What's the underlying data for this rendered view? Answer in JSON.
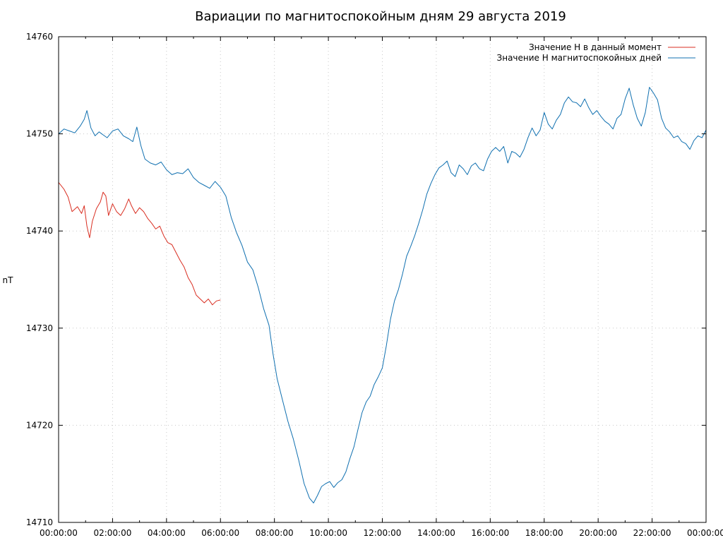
{
  "chart_data": {
    "type": "line",
    "title": "Вариации по магнитоспокойным дням 29 августа 2019",
    "ylabel": "nT",
    "xlabel": "",
    "xlim": [
      0,
      24
    ],
    "ylim": [
      14710,
      14760
    ],
    "grid": true,
    "legend_position": "top-right",
    "x_ticks": [
      {
        "value": 0,
        "label": "00:00:00"
      },
      {
        "value": 2,
        "label": "02:00:00"
      },
      {
        "value": 4,
        "label": "04:00:00"
      },
      {
        "value": 6,
        "label": "06:00:00"
      },
      {
        "value": 8,
        "label": "08:00:00"
      },
      {
        "value": 10,
        "label": "10:00:00"
      },
      {
        "value": 12,
        "label": "12:00:00"
      },
      {
        "value": 14,
        "label": "14:00:00"
      },
      {
        "value": 16,
        "label": "16:00:00"
      },
      {
        "value": 18,
        "label": "18:00:00"
      },
      {
        "value": 20,
        "label": "20:00:00"
      },
      {
        "value": 22,
        "label": "22:00:00"
      },
      {
        "value": 24,
        "label": "00:00:00"
      }
    ],
    "y_ticks": [
      {
        "value": 14710,
        "label": "14710"
      },
      {
        "value": 14720,
        "label": "14720"
      },
      {
        "value": 14730,
        "label": "14730"
      },
      {
        "value": 14740,
        "label": "14740"
      },
      {
        "value": 14750,
        "label": "14750"
      },
      {
        "value": 14760,
        "label": "14760"
      }
    ],
    "series": [
      {
        "name": "Значение H в данный момент",
        "color": "#d92d20",
        "x": [
          0.0,
          0.2,
          0.35,
          0.5,
          0.7,
          0.85,
          0.95,
          1.05,
          1.15,
          1.25,
          1.4,
          1.55,
          1.65,
          1.75,
          1.85,
          2.0,
          2.15,
          2.3,
          2.45,
          2.6,
          2.7,
          2.85,
          3.0,
          3.15,
          3.3,
          3.45,
          3.6,
          3.75,
          3.9,
          4.05,
          4.2,
          4.35,
          4.5,
          4.65,
          4.8,
          4.95,
          5.1,
          5.25,
          5.4,
          5.55,
          5.7,
          5.85,
          6.0
        ],
        "y": [
          14745.0,
          14744.3,
          14743.5,
          14742.0,
          14742.5,
          14741.8,
          14742.6,
          14740.5,
          14739.3,
          14741.0,
          14742.3,
          14743.0,
          14744.0,
          14743.6,
          14741.6,
          14742.8,
          14742.0,
          14741.6,
          14742.3,
          14743.3,
          14742.6,
          14741.8,
          14742.4,
          14742.0,
          14741.3,
          14740.8,
          14740.2,
          14740.5,
          14739.5,
          14738.8,
          14738.6,
          14737.8,
          14737.0,
          14736.3,
          14735.2,
          14734.5,
          14733.4,
          14733.0,
          14732.6,
          14733.0,
          14732.4,
          14732.8,
          14732.9
        ]
      },
      {
        "name": "Значение H магнитоспокойных дней",
        "color": "#1070b0",
        "x": [
          0.0,
          0.2,
          0.4,
          0.6,
          0.8,
          0.95,
          1.05,
          1.2,
          1.35,
          1.5,
          1.65,
          1.8,
          2.0,
          2.2,
          2.4,
          2.6,
          2.75,
          2.9,
          3.05,
          3.2,
          3.4,
          3.6,
          3.8,
          4.0,
          4.2,
          4.4,
          4.6,
          4.8,
          5.0,
          5.2,
          5.4,
          5.6,
          5.8,
          6.0,
          6.2,
          6.4,
          6.6,
          6.8,
          7.0,
          7.2,
          7.4,
          7.6,
          7.8,
          7.95,
          8.1,
          8.3,
          8.5,
          8.7,
          8.9,
          9.1,
          9.3,
          9.45,
          9.6,
          9.75,
          9.9,
          10.05,
          10.2,
          10.35,
          10.5,
          10.65,
          10.8,
          10.95,
          11.1,
          11.25,
          11.4,
          11.55,
          11.7,
          11.85,
          12.0,
          12.15,
          12.3,
          12.45,
          12.6,
          12.75,
          12.9,
          13.05,
          13.2,
          13.35,
          13.5,
          13.65,
          13.8,
          13.95,
          14.1,
          14.25,
          14.4,
          14.55,
          14.7,
          14.85,
          15.0,
          15.15,
          15.3,
          15.45,
          15.6,
          15.75,
          15.9,
          16.05,
          16.2,
          16.35,
          16.5,
          16.65,
          16.8,
          16.95,
          17.1,
          17.25,
          17.4,
          17.55,
          17.7,
          17.85,
          18.0,
          18.15,
          18.3,
          18.45,
          18.6,
          18.75,
          18.9,
          19.05,
          19.2,
          19.35,
          19.5,
          19.65,
          19.8,
          19.95,
          20.1,
          20.25,
          20.4,
          20.55,
          20.7,
          20.85,
          21.0,
          21.15,
          21.3,
          21.45,
          21.6,
          21.75,
          21.9,
          22.05,
          22.2,
          22.35,
          22.5,
          22.65,
          22.8,
          22.95,
          23.1,
          23.25,
          23.4,
          23.55,
          23.7,
          23.85,
          24.0
        ],
        "y": [
          14750.0,
          14750.5,
          14750.3,
          14750.1,
          14750.8,
          14751.5,
          14752.4,
          14750.6,
          14749.8,
          14750.2,
          14749.9,
          14749.6,
          14750.3,
          14750.5,
          14749.8,
          14749.5,
          14749.2,
          14750.7,
          14748.8,
          14747.4,
          14747.0,
          14746.8,
          14747.1,
          14746.3,
          14745.8,
          14746.0,
          14745.9,
          14746.4,
          14745.5,
          14745.0,
          14744.7,
          14744.4,
          14745.1,
          14744.5,
          14743.6,
          14741.4,
          14739.8,
          14738.5,
          14736.8,
          14736.0,
          14734.2,
          14732.0,
          14730.3,
          14727.3,
          14724.8,
          14722.6,
          14720.4,
          14718.6,
          14716.4,
          14714.0,
          14712.5,
          14712.0,
          14712.8,
          14713.7,
          14714.0,
          14714.2,
          14713.6,
          14714.1,
          14714.4,
          14715.2,
          14716.6,
          14717.8,
          14719.6,
          14721.3,
          14722.4,
          14723.0,
          14724.2,
          14725.0,
          14725.9,
          14728.2,
          14730.9,
          14732.8,
          14734.0,
          14735.6,
          14737.4,
          14738.4,
          14739.5,
          14740.8,
          14742.2,
          14743.8,
          14744.9,
          14745.8,
          14746.5,
          14746.8,
          14747.2,
          14746.0,
          14745.6,
          14746.8,
          14746.4,
          14745.8,
          14746.7,
          14747.0,
          14746.4,
          14746.2,
          14747.4,
          14748.2,
          14748.6,
          14748.2,
          14748.7,
          14747.0,
          14748.2,
          14748.0,
          14747.6,
          14748.4,
          14749.6,
          14750.6,
          14749.8,
          14750.4,
          14752.2,
          14751.0,
          14750.5,
          14751.4,
          14752.0,
          14753.2,
          14753.8,
          14753.3,
          14753.2,
          14752.8,
          14753.6,
          14752.7,
          14752.0,
          14752.4,
          14751.8,
          14751.3,
          14751.0,
          14750.5,
          14751.6,
          14752.0,
          14753.6,
          14754.7,
          14753.0,
          14751.6,
          14750.8,
          14752.2,
          14754.8,
          14754.2,
          14753.5,
          14751.6,
          14750.6,
          14750.2,
          14749.6,
          14749.8,
          14749.2,
          14749.0,
          14748.4,
          14749.3,
          14749.8,
          14749.6,
          14750.4
        ]
      }
    ]
  }
}
